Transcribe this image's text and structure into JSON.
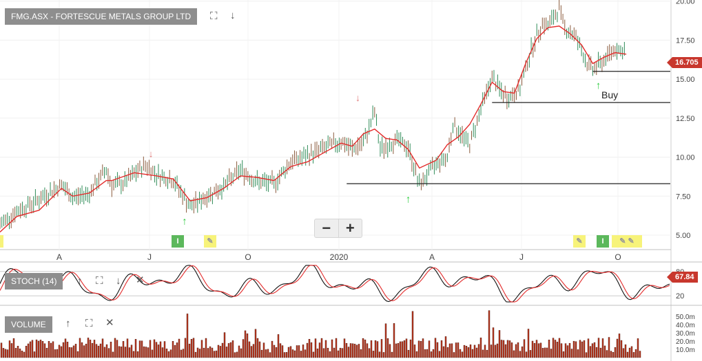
{
  "header": {
    "title": "FMG.ASX - FORTESCUE METALS GROUP LTD",
    "last_price": "16.705"
  },
  "toolbar": {
    "expand_icon": "expand-icon",
    "download_icon": "arrow-down-icon",
    "zoom_out": "−",
    "zoom_in": "+"
  },
  "panels": {
    "stoch": {
      "label": "STOCH (14)",
      "last_value": "67.84",
      "levels": [
        80,
        20
      ],
      "tick_labels": [
        "80",
        "20"
      ]
    },
    "volume": {
      "label": "VOLUME",
      "tick_labels": [
        "50.0m",
        "40.0m",
        "30.0m",
        "20.0m",
        "10.0m"
      ]
    }
  },
  "annotations": {
    "buy": "Buy"
  },
  "markers": [
    {
      "type": "I",
      "color": "#5cb85c"
    },
    {
      "type": "pencil",
      "color": "#f7f37a"
    },
    {
      "type": "pencil",
      "color": "#f7f37a"
    },
    {
      "type": "I",
      "color": "#5cb85c"
    },
    {
      "type": "pencil",
      "color": "#f7f37a"
    }
  ],
  "chart_data": {
    "type": "line",
    "x_ticks": [
      "A",
      "J",
      "O",
      "2020",
      "A",
      "J",
      "O"
    ],
    "y_ticks": [
      "20.00",
      "17.50",
      "15.00",
      "12.50",
      "10.00",
      "7.50",
      "5.00"
    ],
    "ylim": [
      5,
      20
    ],
    "grid": true,
    "colors": {
      "price": "#2e8b57",
      "moving_average": "#e32a2a",
      "stoch_k": "#111111",
      "stoch_d": "#e32a2a",
      "volume": "#c0391e"
    },
    "price_path": [
      [
        0,
        5.7
      ],
      [
        3,
        6.5
      ],
      [
        7,
        7.3
      ],
      [
        11,
        8.2
      ],
      [
        13,
        7.4
      ],
      [
        16,
        7.7
      ],
      [
        19,
        9.2
      ],
      [
        20,
        8.2
      ],
      [
        22,
        8.3
      ],
      [
        26,
        9.5
      ],
      [
        28,
        8.9
      ],
      [
        31,
        8.5
      ],
      [
        34,
        6.8
      ],
      [
        37,
        7.5
      ],
      [
        40,
        8.1
      ],
      [
        43,
        9.2
      ],
      [
        46,
        8.4
      ],
      [
        49,
        8.3
      ],
      [
        52,
        9.7
      ],
      [
        55,
        10.1
      ],
      [
        58,
        10.6
      ],
      [
        61,
        11.0
      ],
      [
        63,
        10.5
      ],
      [
        65,
        10.9
      ],
      [
        67,
        12.9
      ],
      [
        68,
        10.5
      ],
      [
        71,
        11.1
      ],
      [
        73,
        10.6
      ],
      [
        75,
        8.2
      ],
      [
        78,
        9.6
      ],
      [
        80,
        10.0
      ],
      [
        81,
        12.1
      ],
      [
        83,
        11.2
      ],
      [
        84,
        10.8
      ],
      [
        86,
        13.1
      ],
      [
        88,
        15.1
      ],
      [
        90,
        14.0
      ],
      [
        91,
        13.8
      ],
      [
        93,
        14.4
      ],
      [
        95,
        16.9
      ],
      [
        97,
        18.6
      ],
      [
        98,
        18.4
      ],
      [
        100,
        19.5
      ],
      [
        101,
        18.3
      ],
      [
        103,
        17.7
      ],
      [
        105,
        16.0
      ],
      [
        106,
        15.6
      ],
      [
        108,
        16.2
      ],
      [
        110,
        17.0
      ],
      [
        112,
        16.7
      ]
    ],
    "moving_average_path": [
      [
        0,
        5.2
      ],
      [
        3,
        6.2
      ],
      [
        7,
        6.6
      ],
      [
        11,
        8.0
      ],
      [
        13,
        7.5
      ],
      [
        16,
        7.7
      ],
      [
        19,
        8.5
      ],
      [
        20,
        8.5
      ],
      [
        24,
        9.0
      ],
      [
        28,
        8.8
      ],
      [
        31,
        8.6
      ],
      [
        34,
        7.2
      ],
      [
        37,
        7.4
      ],
      [
        40,
        8.0
      ],
      [
        43,
        8.8
      ],
      [
        46,
        8.7
      ],
      [
        49,
        8.5
      ],
      [
        52,
        9.4
      ],
      [
        55,
        9.7
      ],
      [
        58,
        10.3
      ],
      [
        61,
        10.9
      ],
      [
        63,
        10.7
      ],
      [
        65,
        11.5
      ],
      [
        67,
        11.8
      ],
      [
        69,
        11.2
      ],
      [
        71,
        11.1
      ],
      [
        73,
        10.5
      ],
      [
        75,
        9.3
      ],
      [
        78,
        9.8
      ],
      [
        80,
        10.8
      ],
      [
        82,
        11.3
      ],
      [
        84,
        12.1
      ],
      [
        86,
        13.4
      ],
      [
        88,
        14.8
      ],
      [
        90,
        14.2
      ],
      [
        92,
        14.1
      ],
      [
        94,
        16.0
      ],
      [
        96,
        17.6
      ],
      [
        98,
        18.3
      ],
      [
        100,
        18.4
      ],
      [
        102,
        17.9
      ],
      [
        104,
        17.2
      ],
      [
        106,
        16.0
      ],
      [
        108,
        16.4
      ],
      [
        110,
        16.7
      ],
      [
        112,
        16.6
      ]
    ],
    "horizontal_lines": [
      {
        "y": 8.3,
        "x_from": 62,
        "x_to": 120
      },
      {
        "y": 13.5,
        "x_from": 88,
        "x_to": 120
      },
      {
        "y": 15.5,
        "x_from": 106,
        "x_to": 120
      }
    ],
    "down_arrows": [
      [
        27,
        10.0
      ],
      [
        64,
        13.6
      ],
      [
        103,
        20.1
      ]
    ],
    "up_arrows": [
      [
        33,
        6.3
      ],
      [
        73,
        7.7
      ],
      [
        107,
        15.0
      ]
    ]
  }
}
